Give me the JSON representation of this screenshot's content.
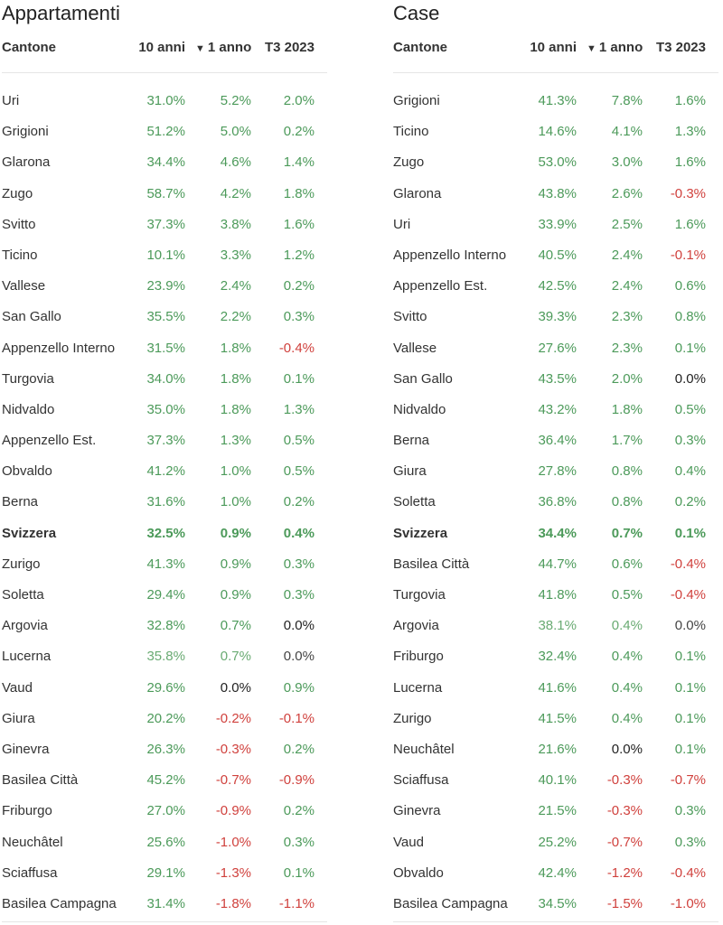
{
  "headers": {
    "name": "Cantone",
    "y10": "10 anni",
    "y1": "1 anno",
    "q": "T3 2023"
  },
  "panels": [
    {
      "title": "Appartamenti",
      "rows": [
        {
          "name": "Uri",
          "y10": "31.0%",
          "y1": "5.2%",
          "q": "2.0%",
          "c": [
            "pos",
            "pos",
            "pos"
          ]
        },
        {
          "name": "Grigioni",
          "y10": "51.2%",
          "y1": "5.0%",
          "q": "0.2%",
          "c": [
            "pos",
            "pos",
            "pos"
          ]
        },
        {
          "name": "Glarona",
          "y10": "34.4%",
          "y1": "4.6%",
          "q": "1.4%",
          "c": [
            "pos",
            "pos",
            "pos"
          ]
        },
        {
          "name": "Zugo",
          "y10": "58.7%",
          "y1": "4.2%",
          "q": "1.8%",
          "c": [
            "pos",
            "pos",
            "pos"
          ]
        },
        {
          "name": "Svitto",
          "y10": "37.3%",
          "y1": "3.8%",
          "q": "1.6%",
          "c": [
            "pos",
            "pos",
            "pos"
          ]
        },
        {
          "name": "Ticino",
          "y10": "10.1%",
          "y1": "3.3%",
          "q": "1.2%",
          "c": [
            "pos",
            "pos",
            "pos"
          ]
        },
        {
          "name": "Vallese",
          "y10": "23.9%",
          "y1": "2.4%",
          "q": "0.2%",
          "c": [
            "pos",
            "pos",
            "pos"
          ]
        },
        {
          "name": "San Gallo",
          "y10": "35.5%",
          "y1": "2.2%",
          "q": "0.3%",
          "c": [
            "pos",
            "pos",
            "pos"
          ]
        },
        {
          "name": "Appenzello Interno",
          "y10": "31.5%",
          "y1": "1.8%",
          "q": "-0.4%",
          "c": [
            "pos",
            "pos",
            "neg"
          ]
        },
        {
          "name": "Turgovia",
          "y10": "34.0%",
          "y1": "1.8%",
          "q": "0.1%",
          "c": [
            "pos",
            "pos",
            "pos"
          ]
        },
        {
          "name": "Nidvaldo",
          "y10": "35.0%",
          "y1": "1.8%",
          "q": "1.3%",
          "c": [
            "pos",
            "pos",
            "pos"
          ]
        },
        {
          "name": "Appenzello Est.",
          "y10": "37.3%",
          "y1": "1.3%",
          "q": "0.5%",
          "c": [
            "pos",
            "pos",
            "pos"
          ]
        },
        {
          "name": "Obvaldo",
          "y10": "41.2%",
          "y1": "1.0%",
          "q": "0.5%",
          "c": [
            "pos",
            "pos",
            "pos"
          ]
        },
        {
          "name": "Berna",
          "y10": "31.6%",
          "y1": "1.0%",
          "q": "0.2%",
          "c": [
            "pos",
            "pos",
            "pos"
          ]
        },
        {
          "name": "Svizzera",
          "y10": "32.5%",
          "y1": "0.9%",
          "q": "0.4%",
          "c": [
            "pos",
            "pos",
            "pos"
          ],
          "bold": true
        },
        {
          "name": "Zurigo",
          "y10": "41.3%",
          "y1": "0.9%",
          "q": "0.3%",
          "c": [
            "pos",
            "pos",
            "pos"
          ]
        },
        {
          "name": "Soletta",
          "y10": "29.4%",
          "y1": "0.9%",
          "q": "0.3%",
          "c": [
            "pos",
            "pos",
            "pos"
          ]
        },
        {
          "name": "Argovia",
          "y10": "32.8%",
          "y1": "0.7%",
          "q": "0.0%",
          "c": [
            "pos",
            "pos",
            "zero"
          ]
        },
        {
          "name": "Lucerna",
          "y10": "35.8%",
          "y1": "0.7%",
          "q": "0.0%",
          "c": [
            "lpos",
            "lpos",
            "muted"
          ]
        },
        {
          "name": "Vaud",
          "y10": "29.6%",
          "y1": "0.0%",
          "q": "0.9%",
          "c": [
            "pos",
            "zero",
            "pos"
          ]
        },
        {
          "name": "Giura",
          "y10": "20.2%",
          "y1": "-0.2%",
          "q": "-0.1%",
          "c": [
            "pos",
            "neg",
            "neg"
          ]
        },
        {
          "name": "Ginevra",
          "y10": "26.3%",
          "y1": "-0.3%",
          "q": "0.2%",
          "c": [
            "pos",
            "neg",
            "pos"
          ]
        },
        {
          "name": "Basilea Città",
          "y10": "45.2%",
          "y1": "-0.7%",
          "q": "-0.9%",
          "c": [
            "pos",
            "neg",
            "neg"
          ]
        },
        {
          "name": "Friburgo",
          "y10": "27.0%",
          "y1": "-0.9%",
          "q": "0.2%",
          "c": [
            "pos",
            "neg",
            "pos"
          ]
        },
        {
          "name": "Neuchâtel",
          "y10": "25.6%",
          "y1": "-1.0%",
          "q": "0.3%",
          "c": [
            "pos",
            "neg",
            "pos"
          ]
        },
        {
          "name": "Sciaffusa",
          "y10": "29.1%",
          "y1": "-1.3%",
          "q": "0.1%",
          "c": [
            "pos",
            "neg",
            "pos"
          ]
        },
        {
          "name": "Basilea Campagna",
          "y10": "31.4%",
          "y1": "-1.8%",
          "q": "-1.1%",
          "c": [
            "pos",
            "neg",
            "neg"
          ]
        }
      ]
    },
    {
      "title": "Case",
      "rows": [
        {
          "name": "Grigioni",
          "y10": "41.3%",
          "y1": "7.8%",
          "q": "1.6%",
          "c": [
            "pos",
            "pos",
            "pos"
          ]
        },
        {
          "name": "Ticino",
          "y10": "14.6%",
          "y1": "4.1%",
          "q": "1.3%",
          "c": [
            "pos",
            "pos",
            "pos"
          ]
        },
        {
          "name": "Zugo",
          "y10": "53.0%",
          "y1": "3.0%",
          "q": "1.6%",
          "c": [
            "pos",
            "pos",
            "pos"
          ]
        },
        {
          "name": "Glarona",
          "y10": "43.8%",
          "y1": "2.6%",
          "q": "-0.3%",
          "c": [
            "pos",
            "pos",
            "neg"
          ]
        },
        {
          "name": "Uri",
          "y10": "33.9%",
          "y1": "2.5%",
          "q": "1.6%",
          "c": [
            "pos",
            "pos",
            "pos"
          ]
        },
        {
          "name": "Appenzello Interno",
          "y10": "40.5%",
          "y1": "2.4%",
          "q": "-0.1%",
          "c": [
            "pos",
            "pos",
            "neg"
          ]
        },
        {
          "name": "Appenzello Est.",
          "y10": "42.5%",
          "y1": "2.4%",
          "q": "0.6%",
          "c": [
            "pos",
            "pos",
            "pos"
          ]
        },
        {
          "name": "Svitto",
          "y10": "39.3%",
          "y1": "2.3%",
          "q": "0.8%",
          "c": [
            "pos",
            "pos",
            "pos"
          ]
        },
        {
          "name": "Vallese",
          "y10": "27.6%",
          "y1": "2.3%",
          "q": "0.1%",
          "c": [
            "pos",
            "pos",
            "pos"
          ]
        },
        {
          "name": "San Gallo",
          "y10": "43.5%",
          "y1": "2.0%",
          "q": "0.0%",
          "c": [
            "pos",
            "pos",
            "zero"
          ]
        },
        {
          "name": "Nidvaldo",
          "y10": "43.2%",
          "y1": "1.8%",
          "q": "0.5%",
          "c": [
            "pos",
            "pos",
            "pos"
          ]
        },
        {
          "name": "Berna",
          "y10": "36.4%",
          "y1": "1.7%",
          "q": "0.3%",
          "c": [
            "pos",
            "pos",
            "pos"
          ]
        },
        {
          "name": "Giura",
          "y10": "27.8%",
          "y1": "0.8%",
          "q": "0.4%",
          "c": [
            "pos",
            "pos",
            "pos"
          ]
        },
        {
          "name": "Soletta",
          "y10": "36.8%",
          "y1": "0.8%",
          "q": "0.2%",
          "c": [
            "pos",
            "pos",
            "pos"
          ]
        },
        {
          "name": "Svizzera",
          "y10": "34.4%",
          "y1": "0.7%",
          "q": "0.1%",
          "c": [
            "pos",
            "pos",
            "pos"
          ],
          "bold": true
        },
        {
          "name": "Basilea Città",
          "y10": "44.7%",
          "y1": "0.6%",
          "q": "-0.4%",
          "c": [
            "pos",
            "pos",
            "neg"
          ]
        },
        {
          "name": "Turgovia",
          "y10": "41.8%",
          "y1": "0.5%",
          "q": "-0.4%",
          "c": [
            "pos",
            "pos",
            "neg"
          ]
        },
        {
          "name": "Argovia",
          "y10": "38.1%",
          "y1": "0.4%",
          "q": "0.0%",
          "c": [
            "lpos",
            "lpos",
            "muted"
          ]
        },
        {
          "name": "Friburgo",
          "y10": "32.4%",
          "y1": "0.4%",
          "q": "0.1%",
          "c": [
            "pos",
            "pos",
            "pos"
          ]
        },
        {
          "name": "Lucerna",
          "y10": "41.6%",
          "y1": "0.4%",
          "q": "0.1%",
          "c": [
            "pos",
            "pos",
            "pos"
          ]
        },
        {
          "name": "Zurigo",
          "y10": "41.5%",
          "y1": "0.4%",
          "q": "0.1%",
          "c": [
            "pos",
            "pos",
            "pos"
          ]
        },
        {
          "name": "Neuchâtel",
          "y10": "21.6%",
          "y1": "0.0%",
          "q": "0.1%",
          "c": [
            "pos",
            "zero",
            "pos"
          ]
        },
        {
          "name": "Sciaffusa",
          "y10": "40.1%",
          "y1": "-0.3%",
          "q": "-0.7%",
          "c": [
            "pos",
            "neg",
            "neg"
          ]
        },
        {
          "name": "Ginevra",
          "y10": "21.5%",
          "y1": "-0.3%",
          "q": "0.3%",
          "c": [
            "pos",
            "neg",
            "pos"
          ]
        },
        {
          "name": "Vaud",
          "y10": "25.2%",
          "y1": "-0.7%",
          "q": "0.3%",
          "c": [
            "pos",
            "neg",
            "pos"
          ]
        },
        {
          "name": "Obvaldo",
          "y10": "42.4%",
          "y1": "-1.2%",
          "q": "-0.4%",
          "c": [
            "pos",
            "neg",
            "neg"
          ]
        },
        {
          "name": "Basilea Campagna",
          "y10": "34.5%",
          "y1": "-1.5%",
          "q": "-1.0%",
          "c": [
            "pos",
            "neg",
            "neg"
          ]
        }
      ]
    }
  ]
}
